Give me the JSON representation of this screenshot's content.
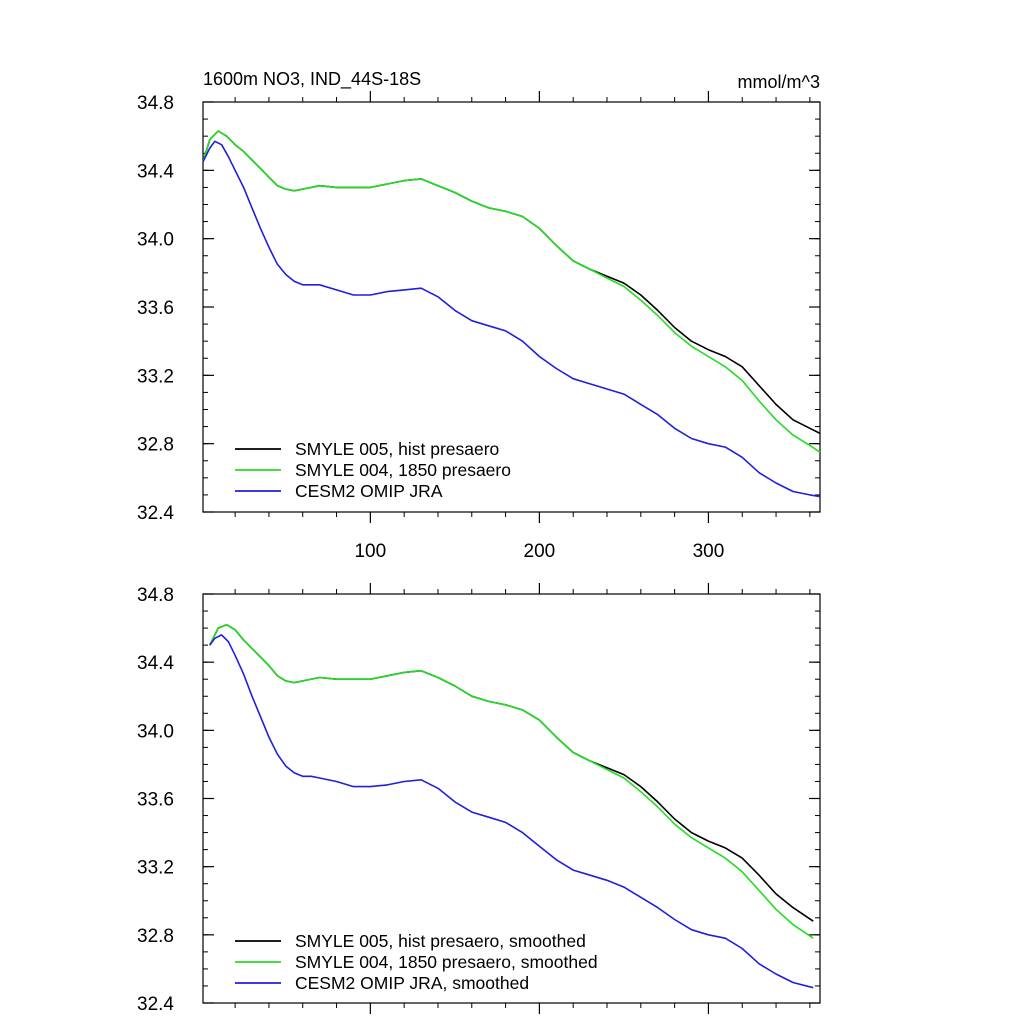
{
  "chart_data": [
    {
      "type": "line",
      "title": "1600m NO3, IND_44S-18S",
      "units": "mmol/m^3",
      "xlim": [
        1,
        366
      ],
      "ylim": [
        32.4,
        34.8
      ],
      "xticks": [
        100,
        200,
        300
      ],
      "yticks": [
        32.4,
        32.8,
        33.2,
        33.6,
        34.0,
        34.4,
        34.8
      ],
      "ytick_labels": [
        "32.4",
        "32.8",
        "33.2",
        "33.6",
        "34.0",
        "34.4",
        "34.8"
      ],
      "xtick_labels": [
        "100",
        "200",
        "300"
      ],
      "legend": "bottom-left",
      "series": [
        {
          "name": "SMYLE 005, hist presaero",
          "color": "#000000",
          "x": [
            1,
            5,
            10,
            15,
            20,
            25,
            30,
            35,
            40,
            45,
            50,
            55,
            60,
            70,
            80,
            90,
            100,
            110,
            120,
            130,
            140,
            150,
            160,
            170,
            180,
            190,
            200,
            210,
            220,
            230,
            240,
            250,
            260,
            270,
            280,
            290,
            300,
            310,
            320,
            330,
            340,
            350,
            360,
            366
          ],
          "y": [
            34.45,
            34.58,
            34.63,
            34.6,
            34.55,
            34.51,
            34.46,
            34.41,
            34.36,
            34.31,
            34.29,
            34.28,
            34.29,
            34.31,
            34.3,
            34.3,
            34.3,
            34.32,
            34.34,
            34.35,
            34.31,
            34.27,
            34.22,
            34.18,
            34.16,
            34.13,
            34.06,
            33.96,
            33.87,
            33.82,
            33.78,
            33.74,
            33.67,
            33.58,
            33.48,
            33.4,
            33.35,
            33.31,
            33.25,
            33.14,
            33.03,
            32.94,
            32.89,
            32.86
          ]
        },
        {
          "name": "SMYLE 004, 1850 presaero",
          "color": "#22dd22",
          "x": [
            1,
            5,
            10,
            15,
            20,
            25,
            30,
            35,
            40,
            45,
            50,
            55,
            60,
            70,
            80,
            90,
            100,
            110,
            120,
            130,
            140,
            150,
            160,
            170,
            180,
            190,
            200,
            210,
            220,
            230,
            240,
            250,
            260,
            270,
            280,
            290,
            300,
            310,
            320,
            330,
            340,
            350,
            360,
            366
          ],
          "y": [
            34.45,
            34.58,
            34.63,
            34.6,
            34.55,
            34.51,
            34.46,
            34.41,
            34.36,
            34.31,
            34.29,
            34.28,
            34.29,
            34.31,
            34.3,
            34.3,
            34.3,
            34.32,
            34.34,
            34.35,
            34.31,
            34.27,
            34.22,
            34.18,
            34.16,
            34.13,
            34.06,
            33.96,
            33.87,
            33.82,
            33.77,
            33.72,
            33.64,
            33.55,
            33.45,
            33.37,
            33.31,
            33.25,
            33.17,
            33.05,
            32.94,
            32.85,
            32.79,
            32.75
          ]
        },
        {
          "name": "CESM2 OMIP JRA",
          "color": "#1f1fdd",
          "x": [
            1,
            5,
            8,
            12,
            16,
            20,
            25,
            30,
            35,
            40,
            45,
            50,
            55,
            60,
            65,
            70,
            80,
            90,
            100,
            110,
            120,
            130,
            140,
            150,
            160,
            170,
            180,
            190,
            200,
            210,
            220,
            230,
            240,
            250,
            260,
            270,
            280,
            290,
            300,
            310,
            320,
            330,
            340,
            350,
            360,
            366
          ],
          "y": [
            34.45,
            34.53,
            34.57,
            34.55,
            34.48,
            34.4,
            34.3,
            34.18,
            34.06,
            33.95,
            33.85,
            33.79,
            33.75,
            33.73,
            33.73,
            33.73,
            33.7,
            33.67,
            33.67,
            33.69,
            33.7,
            33.71,
            33.66,
            33.58,
            33.52,
            33.49,
            33.46,
            33.4,
            33.31,
            33.24,
            33.18,
            33.15,
            33.12,
            33.09,
            33.03,
            32.97,
            32.89,
            32.83,
            32.8,
            32.78,
            32.72,
            32.63,
            32.57,
            32.52,
            32.5,
            32.49
          ]
        }
      ]
    },
    {
      "type": "line",
      "title": "",
      "units": "",
      "xlim": [
        1,
        366
      ],
      "ylim": [
        32.4,
        34.8
      ],
      "xticks": [
        100,
        200,
        300
      ],
      "yticks": [
        32.4,
        32.8,
        33.2,
        33.6,
        34.0,
        34.4,
        34.8
      ],
      "ytick_labels": [
        "32.4",
        "32.8",
        "33.2",
        "33.6",
        "34.0",
        "34.4",
        "34.8"
      ],
      "xtick_labels": [],
      "legend": "bottom-left",
      "series": [
        {
          "name": "SMYLE 005, hist presaero, smoothed",
          "color": "#000000",
          "x": [
            5,
            10,
            15,
            20,
            25,
            30,
            35,
            40,
            45,
            50,
            55,
            60,
            70,
            80,
            90,
            100,
            110,
            120,
            130,
            140,
            150,
            160,
            170,
            180,
            190,
            200,
            210,
            220,
            230,
            240,
            250,
            260,
            270,
            280,
            290,
            300,
            310,
            320,
            330,
            340,
            350,
            362
          ],
          "y": [
            34.5,
            34.6,
            34.62,
            34.59,
            34.53,
            34.48,
            34.43,
            34.38,
            34.32,
            34.29,
            34.28,
            34.29,
            34.31,
            34.3,
            34.3,
            34.3,
            34.32,
            34.34,
            34.35,
            34.31,
            34.26,
            34.2,
            34.17,
            34.15,
            34.12,
            34.06,
            33.96,
            33.87,
            33.82,
            33.78,
            33.74,
            33.67,
            33.58,
            33.48,
            33.4,
            33.35,
            33.31,
            33.25,
            33.15,
            33.04,
            32.96,
            32.88
          ]
        },
        {
          "name": "SMYLE 004, 1850 presaero, smoothed",
          "color": "#22dd22",
          "x": [
            5,
            10,
            15,
            20,
            25,
            30,
            35,
            40,
            45,
            50,
            55,
            60,
            70,
            80,
            90,
            100,
            110,
            120,
            130,
            140,
            150,
            160,
            170,
            180,
            190,
            200,
            210,
            220,
            230,
            240,
            250,
            260,
            270,
            280,
            290,
            300,
            310,
            320,
            330,
            340,
            350,
            362
          ],
          "y": [
            34.5,
            34.6,
            34.62,
            34.59,
            34.53,
            34.48,
            34.43,
            34.38,
            34.32,
            34.29,
            34.28,
            34.29,
            34.31,
            34.3,
            34.3,
            34.3,
            34.32,
            34.34,
            34.35,
            34.31,
            34.26,
            34.2,
            34.17,
            34.15,
            34.12,
            34.06,
            33.96,
            33.87,
            33.82,
            33.77,
            33.72,
            33.64,
            33.55,
            33.45,
            33.37,
            33.31,
            33.25,
            33.17,
            33.06,
            32.95,
            32.86,
            32.78
          ]
        },
        {
          "name": "CESM2 OMIP JRA, smoothed",
          "color": "#1f1fdd",
          "x": [
            5,
            8,
            12,
            16,
            20,
            25,
            30,
            35,
            40,
            45,
            50,
            55,
            60,
            65,
            70,
            80,
            90,
            100,
            110,
            120,
            130,
            140,
            150,
            160,
            170,
            180,
            190,
            200,
            210,
            220,
            230,
            240,
            250,
            260,
            270,
            280,
            290,
            300,
            310,
            320,
            330,
            340,
            350,
            362
          ],
          "y": [
            34.5,
            34.54,
            34.56,
            34.52,
            34.44,
            34.33,
            34.2,
            34.08,
            33.96,
            33.86,
            33.79,
            33.75,
            33.73,
            33.73,
            33.72,
            33.7,
            33.67,
            33.67,
            33.68,
            33.7,
            33.71,
            33.66,
            33.58,
            33.52,
            33.49,
            33.46,
            33.4,
            33.32,
            33.24,
            33.18,
            33.15,
            33.12,
            33.08,
            33.02,
            32.96,
            32.89,
            32.83,
            32.8,
            32.78,
            32.72,
            32.63,
            32.57,
            32.52,
            32.49
          ]
        }
      ]
    }
  ]
}
